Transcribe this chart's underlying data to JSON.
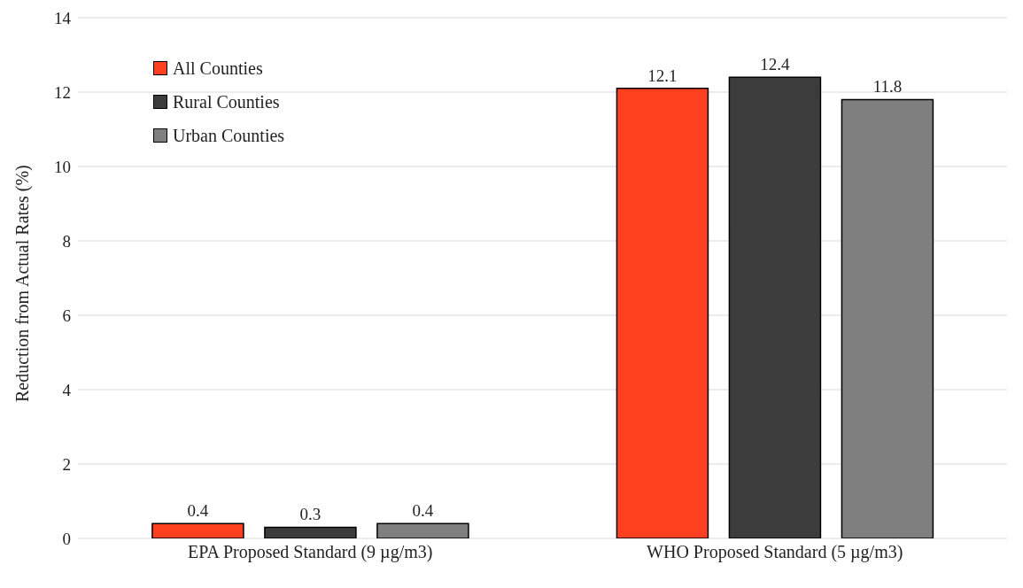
{
  "chart_data": {
    "type": "bar",
    "ylabel": "Reduction from Actual Rates (%)",
    "categories": [
      "EPA Proposed Standard (9 µg/m3)",
      "WHO Proposed Standard (5 µg/m3)"
    ],
    "series": [
      {
        "name": "All Counties",
        "color": "#ff4020",
        "values": [
          0.4,
          12.1
        ]
      },
      {
        "name": "Rural Counties",
        "color": "#3c3c3c",
        "values": [
          0.3,
          12.4
        ]
      },
      {
        "name": "Urban Counties",
        "color": "#7f7f7f",
        "values": [
          0.4,
          11.8
        ]
      }
    ],
    "ylim": [
      0,
      14
    ],
    "yticks": [
      0,
      2,
      4,
      6,
      8,
      10,
      12,
      14
    ],
    "grid": "y",
    "legend": "top left",
    "data_labels": true
  }
}
